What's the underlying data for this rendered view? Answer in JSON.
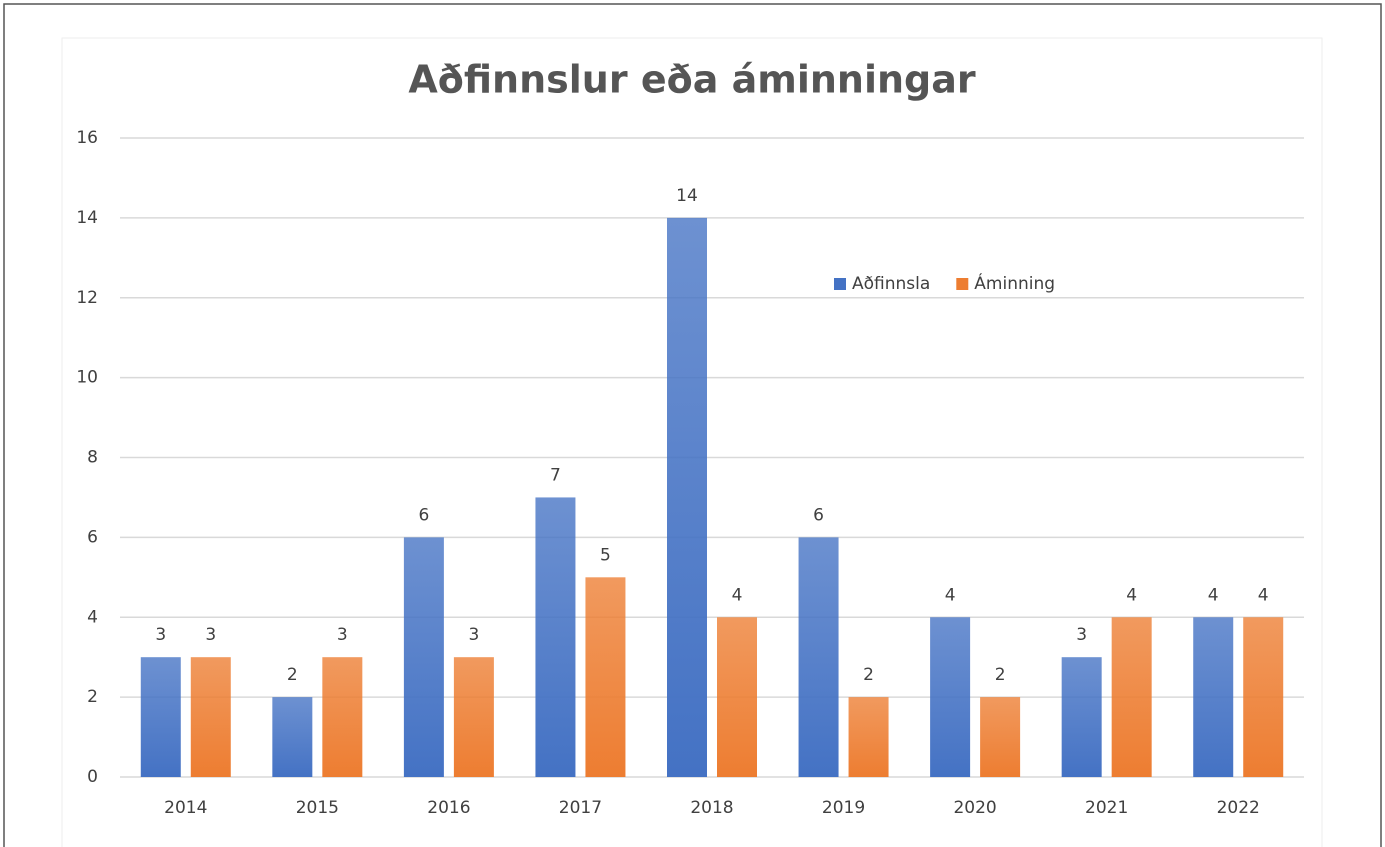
{
  "chart_data": {
    "type": "bar",
    "title": "Aðfinnslur eða áminningar",
    "categories": [
      "2014",
      "2015",
      "2016",
      "2017",
      "2018",
      "2019",
      "2020",
      "2021",
      "2022"
    ],
    "series": [
      {
        "name": "Aðfinnsla",
        "color": "#4472c4",
        "values": [
          3,
          2,
          6,
          7,
          14,
          6,
          4,
          3,
          4
        ]
      },
      {
        "name": "Áminning",
        "color": "#ed7d31",
        "values": [
          3,
          3,
          3,
          5,
          4,
          2,
          2,
          4,
          4
        ]
      }
    ],
    "ylim": [
      0,
      16
    ],
    "yticks": [
      0,
      2,
      4,
      6,
      8,
      10,
      12,
      14,
      16
    ],
    "grid": true,
    "legend": "upper right"
  }
}
